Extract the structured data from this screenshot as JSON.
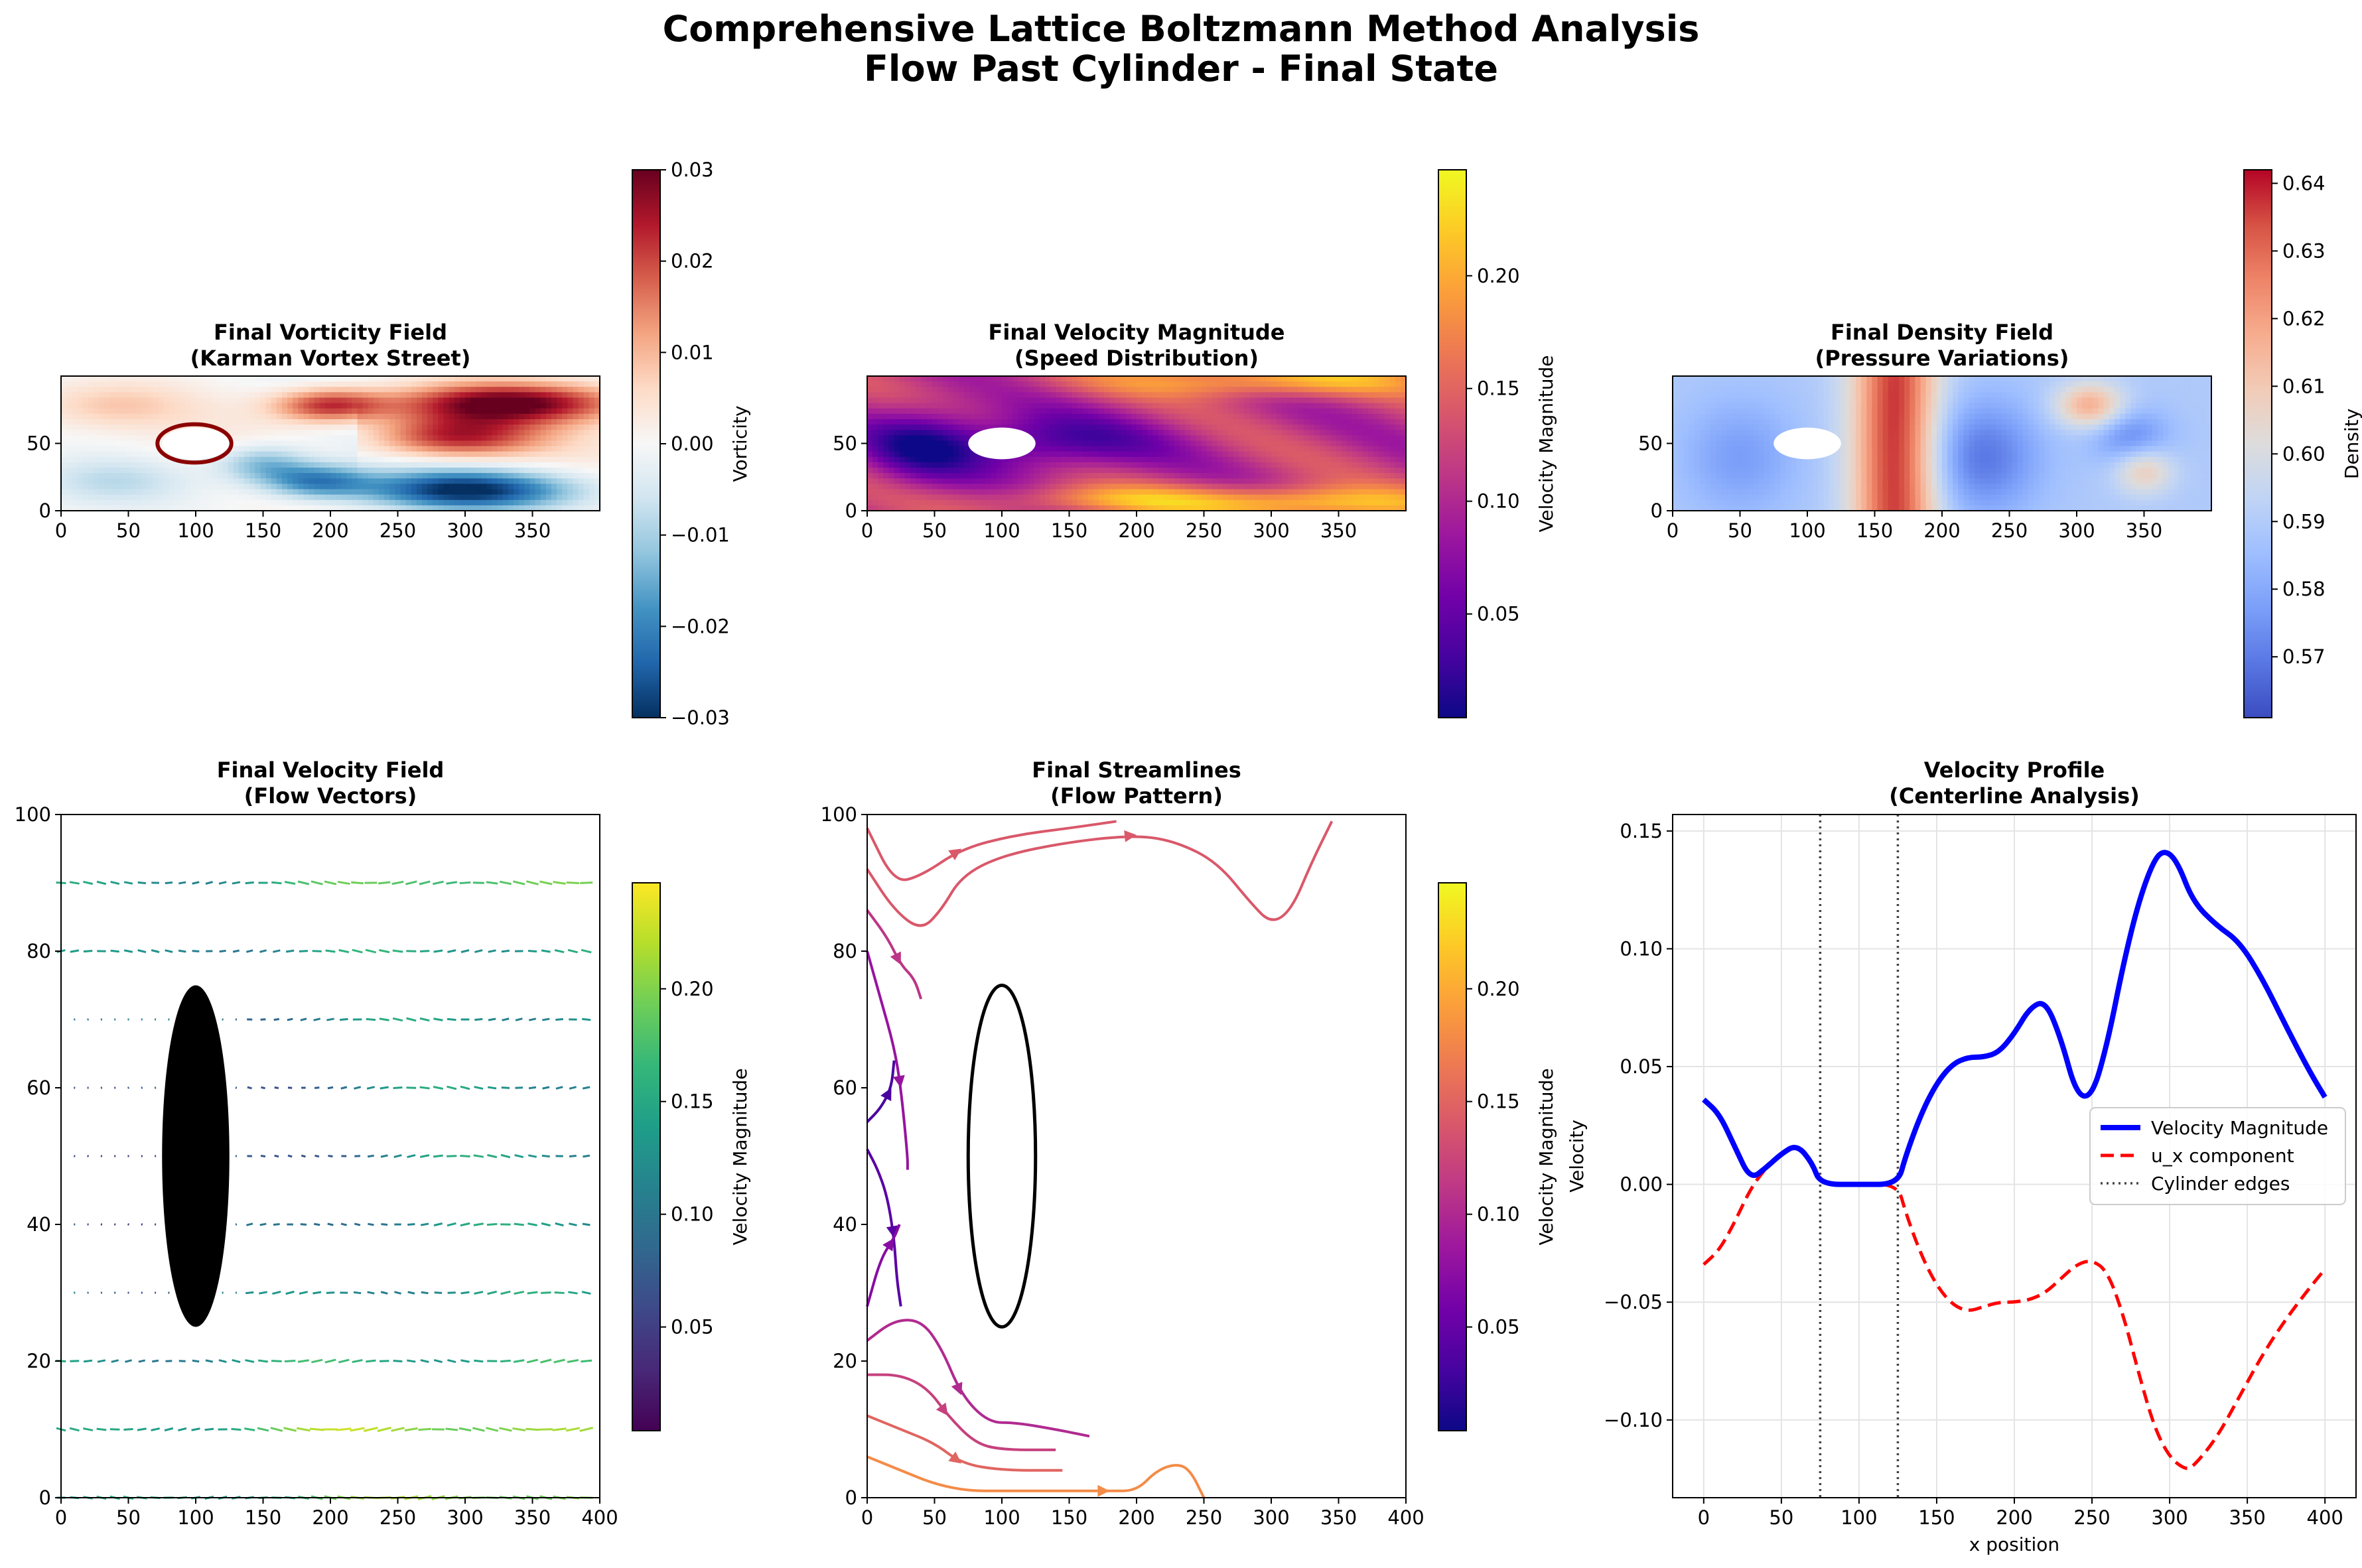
{
  "figure": {
    "title_line1": "Comprehensive Lattice Boltzmann Method Analysis",
    "title_line2": "Flow Past Cylinder - Final State"
  },
  "chart_data": [
    {
      "type": "heatmap",
      "title": "Final Vorticity Field",
      "subtitle": "(Karman Vortex Street)",
      "x_ticks": [
        0,
        50,
        100,
        150,
        200,
        250,
        300,
        350
      ],
      "y_ticks": [
        0,
        50
      ],
      "xlim": [
        0,
        400
      ],
      "ylim": [
        0,
        100
      ],
      "colormap": "RdBu_r",
      "colorbar_label": "Vorticity",
      "colorbar_range": [
        -0.03,
        0.03
      ],
      "colorbar_ticks": [
        "0.03",
        "0.02",
        "0.01",
        "0.00",
        "−0.01",
        "−0.02",
        "−0.03"
      ],
      "cylinder": {
        "center": [
          100,
          50
        ],
        "radius": 25
      }
    },
    {
      "type": "heatmap",
      "title": "Final Velocity Magnitude",
      "subtitle": "(Speed Distribution)",
      "x_ticks": [
        0,
        50,
        100,
        150,
        200,
        250,
        300,
        350
      ],
      "y_ticks": [
        0,
        50
      ],
      "xlim": [
        0,
        400
      ],
      "ylim": [
        0,
        100
      ],
      "colormap": "plasma",
      "colorbar_label": "Velocity Magnitude",
      "colorbar_range": [
        0.0,
        0.25
      ],
      "colorbar_ticks": [
        "0.20",
        "0.15",
        "0.10",
        "0.05"
      ],
      "cylinder": {
        "center": [
          100,
          50
        ],
        "radius": 25
      }
    },
    {
      "type": "heatmap",
      "title": "Final Density Field",
      "subtitle": "(Pressure Variations)",
      "x_ticks": [
        0,
        50,
        100,
        150,
        200,
        250,
        300,
        350
      ],
      "y_ticks": [
        0,
        50
      ],
      "xlim": [
        0,
        400
      ],
      "ylim": [
        0,
        100
      ],
      "colormap": "coolwarm",
      "colorbar_label": "Density",
      "colorbar_range": [
        0.561,
        0.642
      ],
      "colorbar_ticks": [
        "0.64",
        "0.63",
        "0.62",
        "0.61",
        "0.60",
        "0.59",
        "0.58",
        "0.57"
      ],
      "cylinder": {
        "center": [
          100,
          50
        ],
        "radius": 25
      }
    },
    {
      "type": "scatter",
      "title": "Final Velocity Field",
      "subtitle": "(Flow Vectors)",
      "x_ticks": [
        0,
        50,
        100,
        150,
        200,
        250,
        300,
        350,
        400
      ],
      "y_ticks": [
        0,
        20,
        40,
        60,
        80,
        100
      ],
      "xlim": [
        0,
        400
      ],
      "ylim": [
        0,
        100
      ],
      "colormap": "viridis",
      "colorbar_label": "Velocity Magnitude",
      "colorbar_range": [
        0.0,
        0.25
      ],
      "colorbar_ticks": [
        "0.20",
        "0.15",
        "0.10",
        "0.05"
      ],
      "cylinder": {
        "center": [
          100,
          50
        ],
        "radius": 25
      },
      "rows_y": [
        0,
        10,
        20,
        30,
        40,
        50,
        60,
        70,
        80,
        90
      ]
    },
    {
      "type": "line",
      "title": "Final Streamlines",
      "subtitle": "(Flow Pattern)",
      "x_ticks": [
        0,
        50,
        100,
        150,
        200,
        250,
        300,
        350,
        400
      ],
      "y_ticks": [
        0,
        20,
        40,
        60,
        80,
        100
      ],
      "xlim": [
        0,
        400
      ],
      "ylim": [
        0,
        100
      ],
      "colormap": "plasma",
      "colorbar_label": "Velocity Magnitude",
      "colorbar_range": [
        0.0,
        0.25
      ],
      "colorbar_ticks": [
        "0.20",
        "0.15",
        "0.10",
        "0.05"
      ],
      "cylinder": {
        "center": [
          100,
          50
        ],
        "radius": 25
      },
      "streamlines": [
        {
          "speed": 0.14,
          "points": [
            [
              0,
              98
            ],
            [
              20,
              90
            ],
            [
              40,
              91
            ],
            [
              70,
              95
            ],
            [
              110,
              97
            ],
            [
              150,
              98
            ],
            [
              185,
              99
            ]
          ]
        },
        {
          "speed": 0.14,
          "points": [
            [
              0,
              92
            ],
            [
              20,
              86
            ],
            [
              40,
              83
            ],
            [
              55,
              86
            ],
            [
              70,
              91
            ],
            [
              100,
              94
            ],
            [
              150,
              96
            ],
            [
              200,
              97
            ],
            [
              230,
              96
            ],
            [
              260,
              93
            ],
            [
              285,
              87
            ],
            [
              300,
              84
            ],
            [
              315,
              86
            ],
            [
              330,
              93
            ],
            [
              345,
              99
            ]
          ]
        },
        {
          "speed": 0.11,
          "points": [
            [
              0,
              86
            ],
            [
              15,
              82
            ],
            [
              25,
              78
            ],
            [
              35,
              76
            ],
            [
              40,
              73
            ]
          ]
        },
        {
          "speed": 0.08,
          "points": [
            [
              0,
              80
            ],
            [
              10,
              73
            ],
            [
              20,
              66
            ],
            [
              25,
              60
            ],
            [
              30,
              50
            ],
            [
              30,
              48
            ]
          ]
        },
        {
          "speed": 0.03,
          "points": [
            [
              0,
              55
            ],
            [
              10,
              57
            ],
            [
              18,
              60
            ],
            [
              20,
              64
            ]
          ]
        },
        {
          "speed": 0.04,
          "points": [
            [
              0,
              51
            ],
            [
              8,
              48
            ],
            [
              15,
              44
            ],
            [
              20,
              38
            ],
            [
              22,
              32
            ],
            [
              25,
              28
            ]
          ]
        },
        {
          "speed": 0.07,
          "points": [
            [
              0,
              28
            ],
            [
              10,
              35
            ],
            [
              20,
              38
            ],
            [
              24,
              40
            ]
          ]
        },
        {
          "speed": 0.1,
          "points": [
            [
              0,
              23
            ],
            [
              20,
              26
            ],
            [
              40,
              26
            ],
            [
              55,
              22
            ],
            [
              70,
              15
            ],
            [
              90,
              11
            ],
            [
              110,
              11
            ],
            [
              140,
              10
            ],
            [
              165,
              9
            ]
          ]
        },
        {
          "speed": 0.12,
          "points": [
            [
              0,
              18
            ],
            [
              25,
              18
            ],
            [
              45,
              16
            ],
            [
              60,
              12
            ],
            [
              80,
              8
            ],
            [
              100,
              7
            ],
            [
              140,
              7
            ]
          ]
        },
        {
          "speed": 0.15,
          "points": [
            [
              0,
              12
            ],
            [
              25,
              10
            ],
            [
              50,
              8
            ],
            [
              70,
              5
            ],
            [
              100,
              4
            ],
            [
              145,
              4
            ]
          ]
        },
        {
          "speed": 0.18,
          "points": [
            [
              0,
              6
            ],
            [
              25,
              4
            ],
            [
              50,
              2
            ],
            [
              75,
              1
            ],
            [
              100,
              1
            ],
            [
              150,
              1
            ],
            [
              180,
              1
            ],
            [
              200,
              1
            ],
            [
              215,
              4
            ],
            [
              230,
              5
            ],
            [
              240,
              4
            ],
            [
              250,
              0
            ]
          ]
        }
      ]
    },
    {
      "type": "line",
      "title": "Velocity Profile",
      "subtitle": "(Centerline Analysis)",
      "xlabel": "x position",
      "ylabel": "Velocity",
      "x_ticks": [
        0,
        50,
        100,
        150,
        200,
        250,
        300,
        350,
        400
      ],
      "y_ticks": [
        "0.15",
        "0.10",
        "0.05",
        "0.00",
        "−0.05",
        "−0.10"
      ],
      "xlim": [
        -20,
        420
      ],
      "ylim": [
        -0.133,
        0.157
      ],
      "grid": true,
      "legend_position": "center-right",
      "cylinder_edges": [
        75,
        125
      ],
      "series": [
        {
          "name": "Velocity Magnitude",
          "color": "#0000ff",
          "x": [
            0,
            10,
            20,
            30,
            40,
            50,
            60,
            70,
            75,
            100,
            125,
            130,
            140,
            150,
            160,
            170,
            180,
            190,
            200,
            210,
            220,
            230,
            240,
            250,
            260,
            270,
            280,
            290,
            297,
            305,
            315,
            330,
            345,
            360,
            375,
            390,
            400
          ],
          "values": [
            0.036,
            0.03,
            0.016,
            0.002,
            0.007,
            0.013,
            0.017,
            0.009,
            0.0,
            0.0,
            0.0,
            0.012,
            0.03,
            0.043,
            0.051,
            0.054,
            0.054,
            0.056,
            0.064,
            0.075,
            0.078,
            0.062,
            0.038,
            0.037,
            0.06,
            0.093,
            0.12,
            0.138,
            0.142,
            0.137,
            0.12,
            0.11,
            0.103,
            0.087,
            0.067,
            0.048,
            0.037
          ]
        },
        {
          "name": "u_x component",
          "color": "#ff0000",
          "x": [
            0,
            10,
            20,
            30,
            40,
            50,
            60,
            70,
            75,
            100,
            125,
            130,
            140,
            150,
            160,
            170,
            180,
            190,
            200,
            210,
            220,
            230,
            240,
            250,
            260,
            270,
            280,
            290,
            300,
            310,
            315,
            330,
            345,
            360,
            375,
            390,
            400
          ],
          "values": [
            -0.034,
            -0.028,
            -0.016,
            -0.002,
            0.007,
            0.013,
            0.017,
            0.009,
            0.0,
            0.0,
            0.0,
            -0.012,
            -0.03,
            -0.043,
            -0.051,
            -0.054,
            -0.052,
            -0.05,
            -0.05,
            -0.049,
            -0.046,
            -0.04,
            -0.034,
            -0.032,
            -0.037,
            -0.055,
            -0.08,
            -0.103,
            -0.116,
            -0.121,
            -0.12,
            -0.108,
            -0.09,
            -0.072,
            -0.057,
            -0.044,
            -0.036
          ]
        },
        {
          "name": "Cylinder edges",
          "color": "#444444",
          "style": "dotted"
        }
      ]
    }
  ]
}
